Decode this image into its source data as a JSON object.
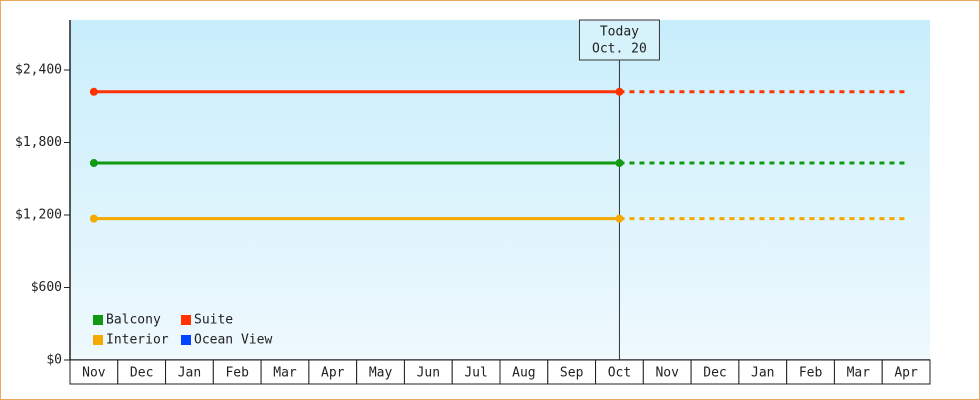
{
  "chart_data": {
    "type": "line",
    "categories": [
      "Nov",
      "Dec",
      "Jan",
      "Feb",
      "Mar",
      "Apr",
      "May",
      "Jun",
      "Jul",
      "Aug",
      "Sep",
      "Oct",
      "Nov",
      "Dec",
      "Jan",
      "Feb",
      "Mar",
      "Apr"
    ],
    "series": [
      {
        "name": "Balcony",
        "color": "#119911",
        "values": [
          1630,
          1630,
          1630,
          1630,
          1630,
          1630,
          1630,
          1630,
          1630,
          1630,
          1630,
          1630,
          1630,
          1630,
          1630,
          1630,
          1630,
          1630
        ]
      },
      {
        "name": "Suite",
        "color": "#ff3300",
        "values": [
          2220,
          2220,
          2220,
          2220,
          2220,
          2220,
          2220,
          2220,
          2220,
          2220,
          2220,
          2220,
          2220,
          2220,
          2220,
          2220,
          2220,
          2220
        ]
      },
      {
        "name": "Interior",
        "color": "#f5a800",
        "values": [
          1170,
          1170,
          1170,
          1170,
          1170,
          1170,
          1170,
          1170,
          1170,
          1170,
          1170,
          1170,
          1170,
          1170,
          1170,
          1170,
          1170,
          1170
        ]
      },
      {
        "name": "Ocean View",
        "color": "#0044ff",
        "values": [
          null,
          null,
          null,
          null,
          null,
          null,
          null,
          null,
          null,
          null,
          null,
          null,
          null,
          null,
          null,
          null,
          null,
          null
        ]
      }
    ],
    "ylim": [
      0,
      2814
    ],
    "yticks": [
      {
        "value": 0,
        "label": "$0"
      },
      {
        "value": 600,
        "label": "$600"
      },
      {
        "value": 1200,
        "label": "$1,200"
      },
      {
        "value": 1800,
        "label": "$1,800"
      },
      {
        "value": 2400,
        "label": "$2,400"
      }
    ],
    "annotation": [
      "Today",
      "Oct. 20"
    ],
    "legend": "lower-left"
  }
}
